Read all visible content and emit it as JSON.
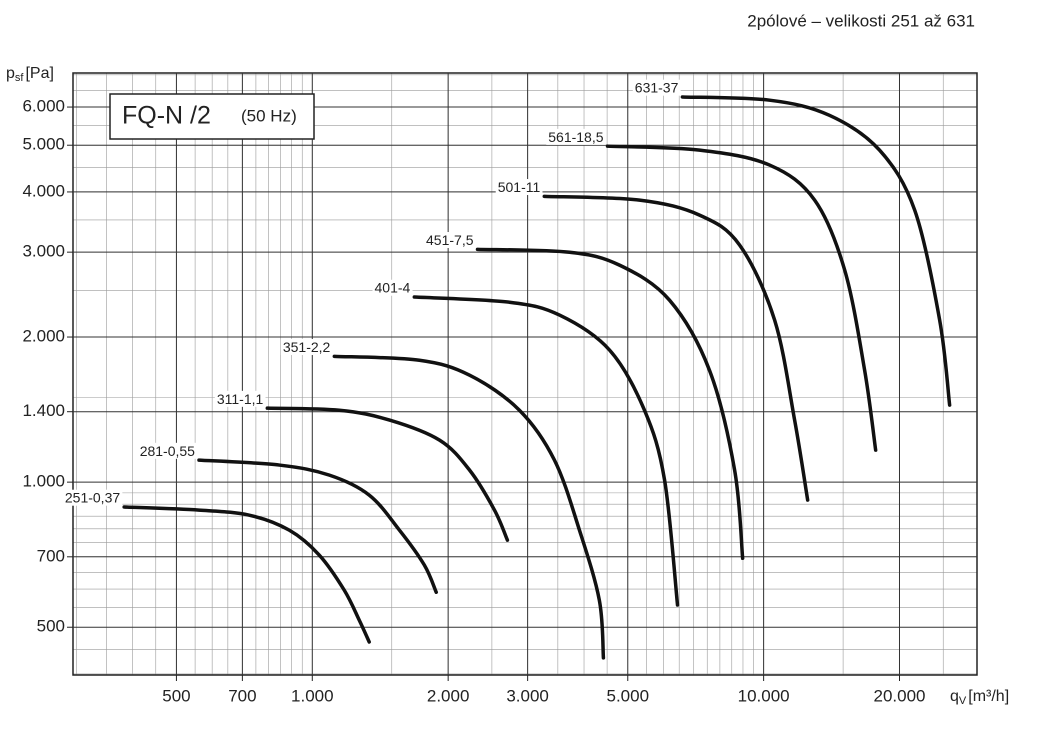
{
  "chart_data": {
    "type": "line",
    "title": "2pólové – velikosti 251 až 631",
    "box_title": "FQ-N /2",
    "box_subtitle": "(50 Hz)",
    "y_label": {
      "symbol": "p",
      "sub": "sf",
      "unit": "[Pa]"
    },
    "x_label": {
      "symbol": "q",
      "sub": "V",
      "unit": "[m³/h]"
    },
    "xscale": "log",
    "yscale": "log",
    "grid": true,
    "minor_grid": true,
    "xlim": [
      295,
      29700
    ],
    "ylim": [
      398,
      7060
    ],
    "xticks": [
      500,
      700,
      {
        "value": 1000,
        "label": "1.000"
      },
      {
        "value": 2000,
        "label": "2.000"
      },
      {
        "value": 3000,
        "label": "3.000"
      },
      {
        "value": 5000,
        "label": "5.000"
      },
      {
        "value": 10000,
        "label": "10.000"
      },
      {
        "value": 20000,
        "label": "20.000"
      }
    ],
    "yticks": [
      500,
      700,
      {
        "value": 1000,
        "label": "1.000"
      },
      {
        "value": 1400,
        "label": "1.400"
      },
      {
        "value": 2000,
        "label": "2.000"
      },
      {
        "value": 3000,
        "label": "3.000"
      },
      {
        "value": 4000,
        "label": "4.000"
      },
      {
        "value": 5000,
        "label": "5.000"
      },
      {
        "value": 6000,
        "label": "6.000"
      }
    ],
    "series": [
      {
        "name": "251-0,37",
        "color": "#111111",
        "x": [
          383,
          561,
          725,
          889,
          1036,
          1177,
          1271,
          1337
        ],
        "values": [
          888,
          875,
          854,
          795,
          706,
          597,
          517,
          466
        ]
      },
      {
        "name": "281-0,55",
        "color": "#111111",
        "x": [
          561,
          845,
          1091,
          1337,
          1560,
          1771,
          1882
        ],
        "values": [
          1111,
          1085,
          1034,
          940,
          795,
          673,
          591
        ]
      },
      {
        "name": "311-1,1",
        "color": "#111111",
        "x": [
          795,
          1148,
          1483,
          1914,
          2231,
          2533,
          2706
        ],
        "values": [
          1424,
          1410,
          1345,
          1222,
          1059,
          875,
          758
        ]
      },
      {
        "name": "351-2,2",
        "color": "#111111",
        "x": [
          1119,
          1727,
          2231,
          2877,
          3440,
          3908,
          4325,
          4416
        ],
        "values": [
          1824,
          1790,
          1667,
          1410,
          1111,
          795,
          569,
          432
        ]
      },
      {
        "name": "401-4",
        "color": "#111111",
        "x": [
          1683,
          2734,
          3530,
          4555,
          5445,
          6033,
          6445
        ],
        "values": [
          2421,
          2362,
          2221,
          1880,
          1410,
          1010,
          556
        ]
      },
      {
        "name": "451-7,5",
        "color": "#111111",
        "x": [
          2323,
          3716,
          4800,
          6188,
          7586,
          8625,
          8985
        ],
        "values": [
          3041,
          2998,
          2818,
          2385,
          1707,
          1059,
          695
        ]
      },
      {
        "name": "501-11",
        "color": "#111111",
        "x": [
          3266,
          5309,
          7211,
          8849,
          10578,
          11713,
          12519
        ],
        "values": [
          3917,
          3847,
          3581,
          3103,
          2168,
          1345,
          918
        ]
      },
      {
        "name": "561-18,5",
        "color": "#111111",
        "x": [
          4510,
          7211,
          10310,
          12974,
          15122,
          16741,
          17710
        ],
        "values": [
          4977,
          4885,
          4548,
          3847,
          2754,
          1707,
          1165
        ]
      },
      {
        "name": "631-37",
        "color": "#111111",
        "x": [
          6607,
          10310,
          13990,
          18060,
          21620,
          24550,
          25830
        ],
        "values": [
          6296,
          6200,
          5768,
          4885,
          3664,
          2168,
          1445
        ]
      }
    ]
  }
}
